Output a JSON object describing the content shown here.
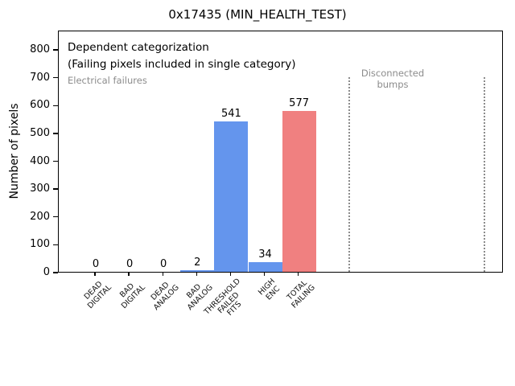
{
  "window": {
    "background": "#ffffff"
  },
  "chart_data": {
    "type": "bar",
    "title": "0x17435 (MIN_HEALTH_TEST)",
    "ylabel": "Number of pixels",
    "xlabel": "",
    "categories": [
      [
        "DEAD",
        "DIGITAL"
      ],
      [
        "BAD",
        "DIGITAL"
      ],
      [
        "DEAD",
        "ANALOG"
      ],
      [
        "BAD",
        "ANALOG"
      ],
      [
        "THRESHOLD",
        "FAILED",
        "FITS"
      ],
      [
        "HIGH",
        "ENC"
      ],
      [
        "TOTAL",
        "FAILING"
      ]
    ],
    "values": [
      0,
      0,
      0,
      2,
      541,
      34,
      577
    ],
    "bar_value_labels": [
      "0",
      "0",
      "0",
      "2",
      "541",
      "34",
      "577"
    ],
    "bar_colors": [
      "#6495ED",
      "#6495ED",
      "#6495ED",
      "#6495ED",
      "#6495ED",
      "#6495ED",
      "#F08080"
    ],
    "ylim": [
      0,
      870
    ],
    "yticks": [
      0,
      100,
      200,
      300,
      400,
      500,
      600,
      700,
      800
    ],
    "grid": false,
    "legend": null,
    "annotations": {
      "primary_line1": "Dependent categorization",
      "primary_line2": "(Failing pixels included in single category)",
      "left_region_label": "Electrical failures",
      "right_region_label": [
        "Disconnected",
        "bumps"
      ]
    },
    "separators": {
      "style": "dotted",
      "color": "#8c8c8c",
      "count": 2,
      "region_meaning": "Disconnected bumps region between the two dotted lines"
    },
    "colors": {
      "bar_blue": "#6495ED",
      "bar_red": "#F08080",
      "annotation_gray": "#8c8c8c"
    }
  }
}
